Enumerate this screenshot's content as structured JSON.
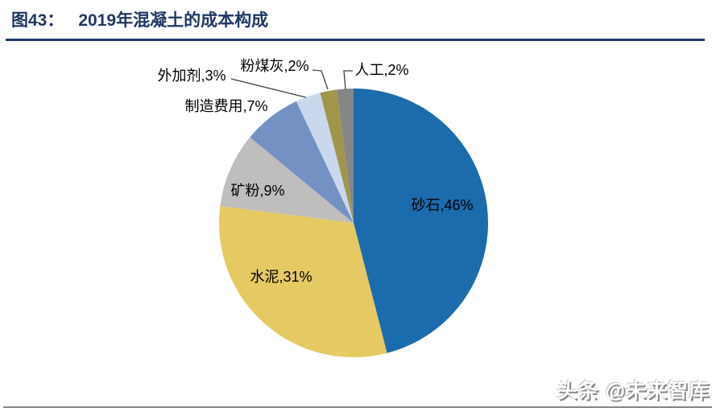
{
  "header": {
    "figure_label": "图43：",
    "title": "2019年混凝土的成本构成"
  },
  "watermark": {
    "text": "头条 @未来智库"
  },
  "colors": {
    "title_navy": "#1F3864",
    "leader_line": "#404040",
    "bottom_rule_gray": "#848484"
  },
  "chart_data": {
    "type": "pie",
    "title": "2019年混凝土的成本构成",
    "unit": "%",
    "start_angle_deg": 0,
    "direction": "clockwise",
    "label_format": "{name},{value}%",
    "legend": "none",
    "slices": [
      {
        "name": "砂石",
        "value": 46,
        "color": "#1C6BAC",
        "label_placement": "inside"
      },
      {
        "name": "水泥",
        "value": 31,
        "color": "#E5C963",
        "label_placement": "inside"
      },
      {
        "name": "矿粉",
        "value": 9,
        "color": "#BFBEBD",
        "label_placement": "inside"
      },
      {
        "name": "制造费用",
        "value": 7,
        "color": "#7491C4",
        "label_placement": "outside"
      },
      {
        "name": "外加剂",
        "value": 3,
        "color": "#C9D8EC",
        "label_placement": "outside-leader"
      },
      {
        "name": "粉煤灰",
        "value": 2,
        "color": "#A0954B",
        "label_placement": "outside-leader"
      },
      {
        "name": "人工",
        "value": 2,
        "color": "#868686",
        "label_placement": "outside-leader"
      }
    ]
  }
}
